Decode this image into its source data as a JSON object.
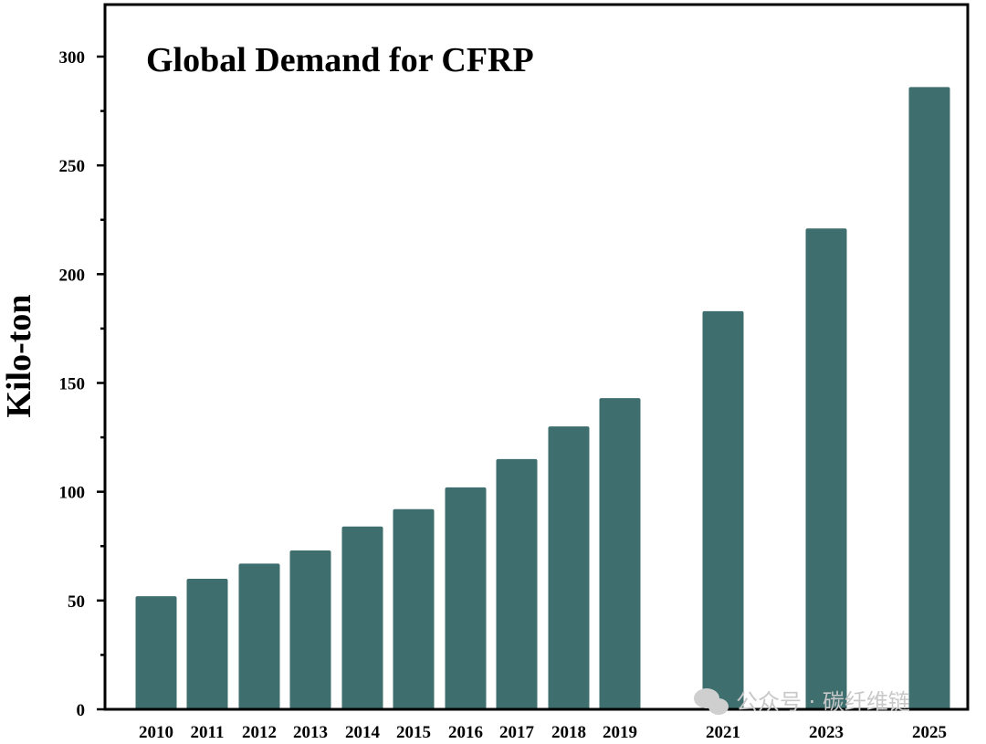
{
  "chart_data": {
    "type": "bar",
    "title": "Global Demand for CFRP",
    "xlabel": "",
    "ylabel": "Kilo-ton",
    "categories": [
      "2010",
      "2011",
      "2012",
      "2013",
      "2014",
      "2015",
      "2016",
      "2017",
      "2018",
      "2019",
      "2021",
      "2023",
      "2025"
    ],
    "values": [
      52,
      60,
      67,
      73,
      84,
      92,
      102,
      115,
      130,
      143,
      183,
      221,
      286
    ],
    "ylim": [
      0,
      320
    ],
    "yticks": [
      0,
      50,
      100,
      150,
      200,
      250,
      300
    ],
    "grid": false,
    "legend": "none",
    "bar_color": "#3e6f6e"
  },
  "watermark": {
    "text": "公众号 · 碳纤维链"
  }
}
